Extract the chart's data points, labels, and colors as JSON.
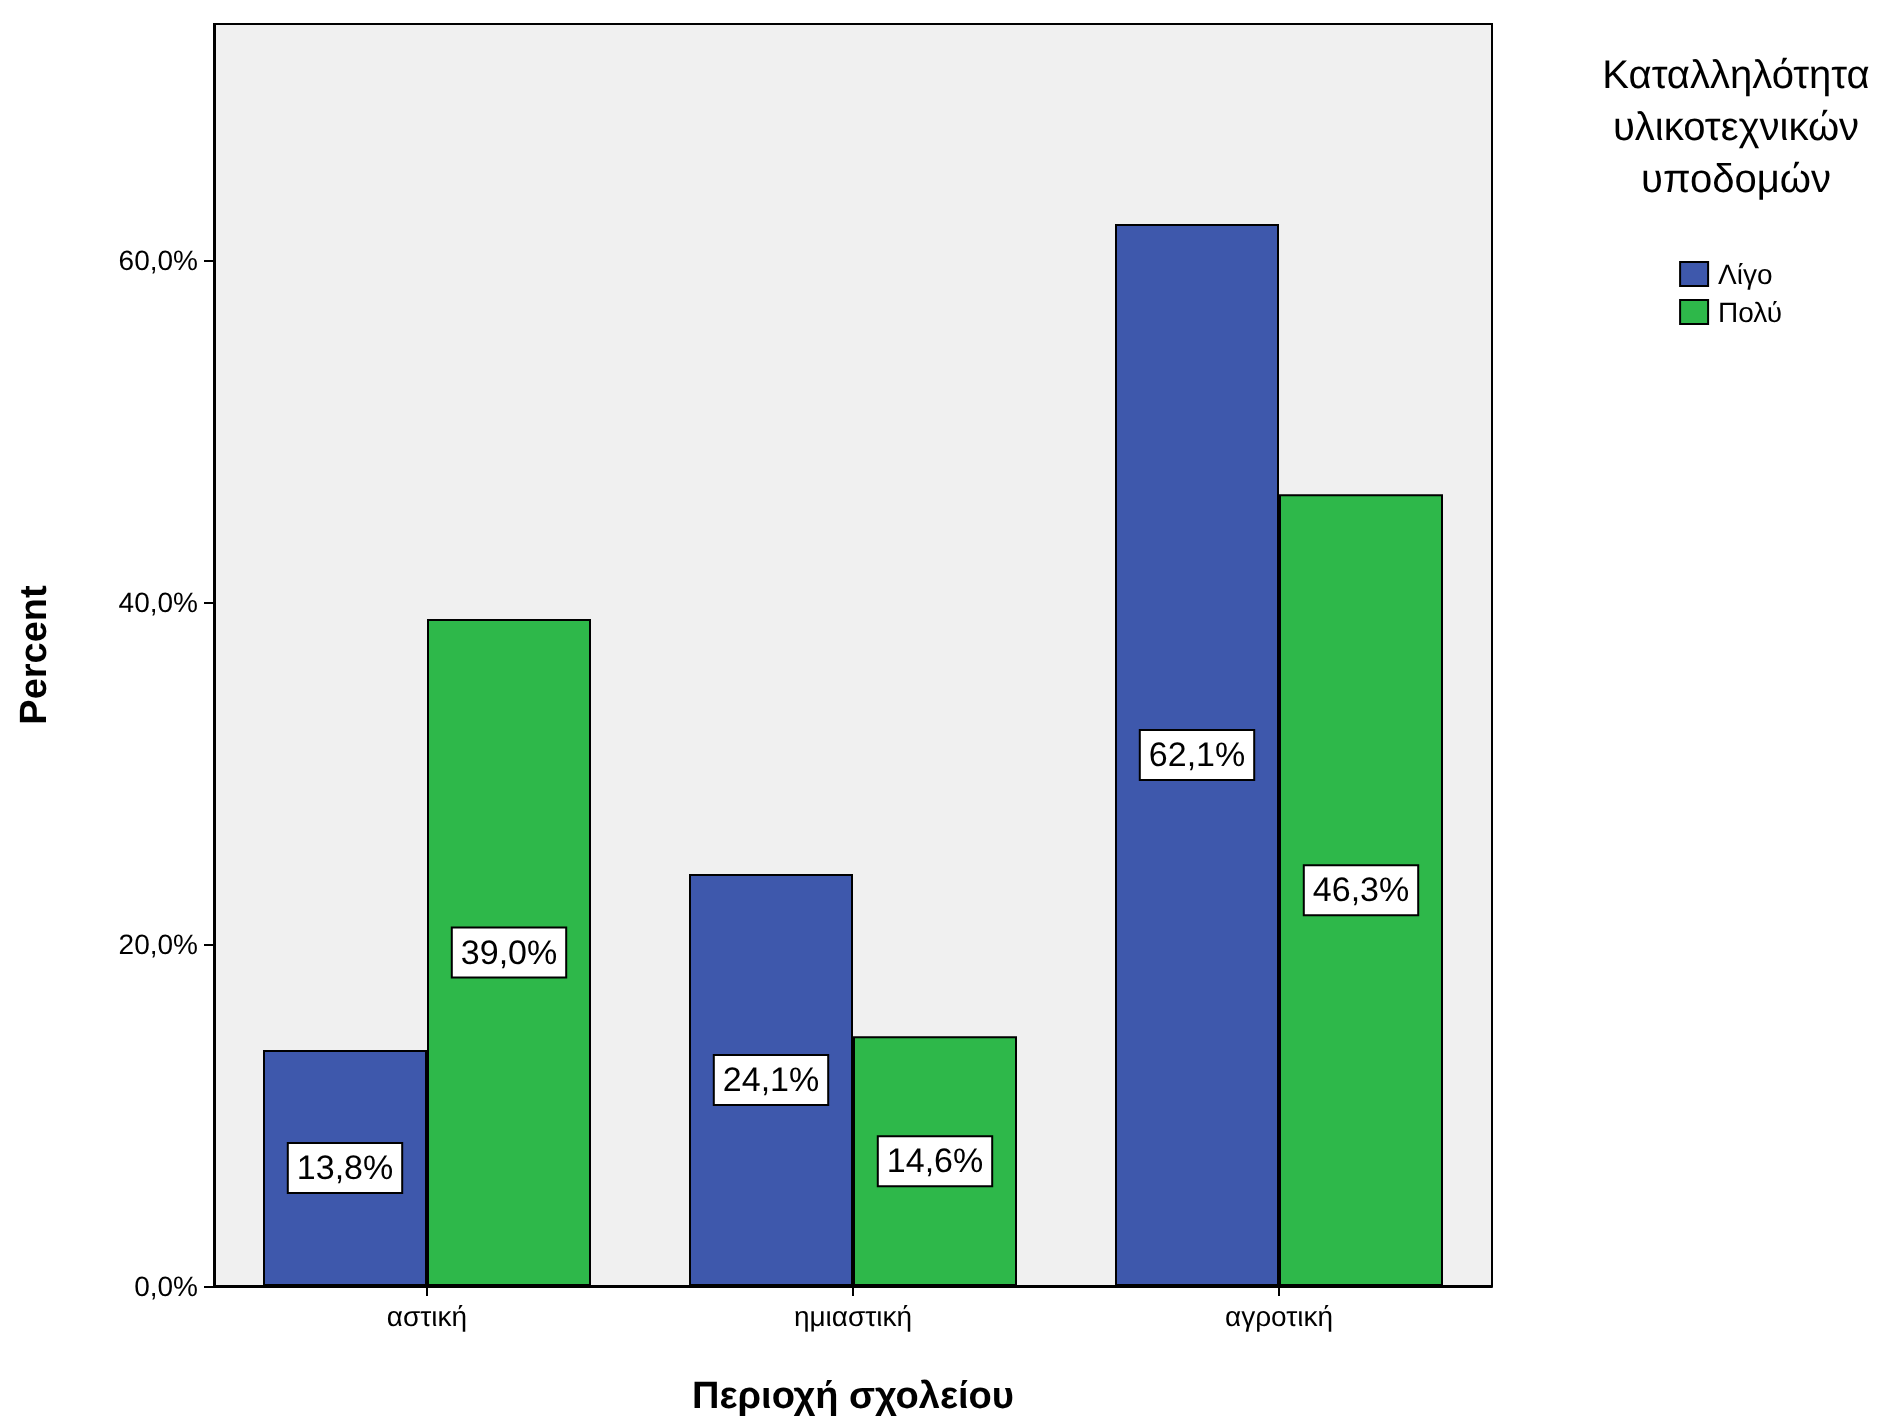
{
  "chart_data": {
    "type": "bar",
    "xlabel": "Περιοχή σχολείου",
    "ylabel": "Percent",
    "legend_title": "Καταλληλότητα\nυλικοτεχνικών\nυποδομών",
    "categories": [
      "αστική",
      "ημιαστική",
      "αγροτική"
    ],
    "series": [
      {
        "name": "Λίγο",
        "color": "#3e58ac",
        "values": [
          13.8,
          24.1,
          62.1
        ],
        "value_labels": [
          "13,8%",
          "24,1%",
          "62,1%"
        ]
      },
      {
        "name": "Πολύ",
        "color": "#2eb84a",
        "values": [
          39.0,
          14.6,
          46.3
        ],
        "value_labels": [
          "39,0%",
          "14,6%",
          "46,3%"
        ]
      }
    ],
    "ylim": [
      0,
      73.8
    ],
    "yticks": [
      {
        "value": 0,
        "label": "0,0%"
      },
      {
        "value": 20,
        "label": "20,0%"
      },
      {
        "value": 40,
        "label": "40,0%"
      },
      {
        "value": 60,
        "label": "60,0%"
      }
    ],
    "grid": false,
    "legend": "top right"
  }
}
